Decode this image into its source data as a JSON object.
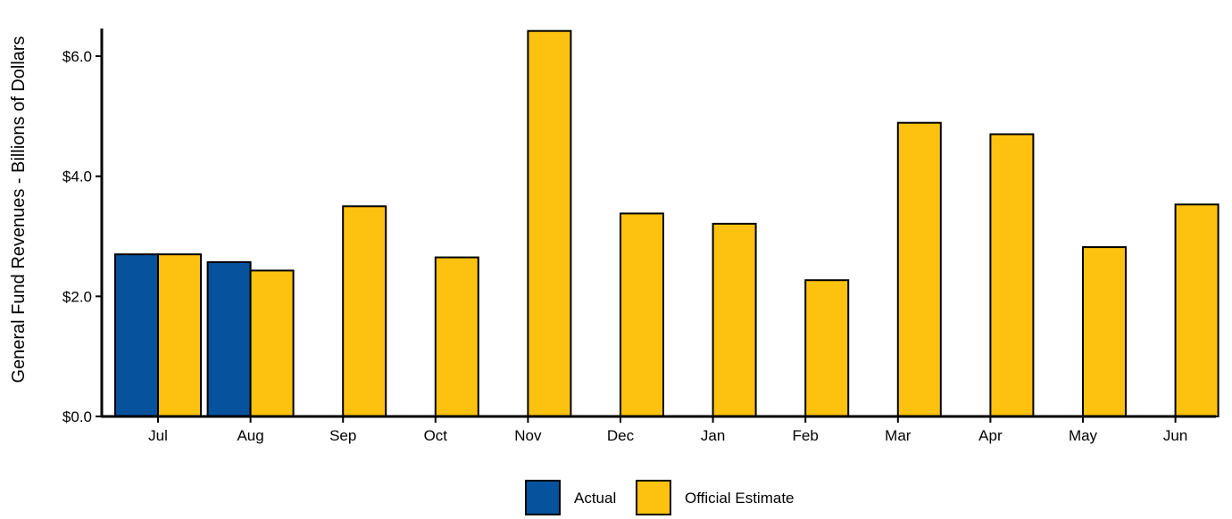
{
  "chart_data": {
    "type": "bar",
    "title": "",
    "xlabel": "",
    "ylabel": "General Fund Revenues - Billions of Dollars",
    "ylim": [
      0,
      6.5
    ],
    "yticks": [
      0,
      2,
      4,
      6
    ],
    "ytick_labels": [
      "$0.0",
      "$2.0",
      "$4.0",
      "$6.0"
    ],
    "grid": false,
    "legend_position": "bottom-center",
    "categories": [
      "Jul",
      "Aug",
      "Sep",
      "Oct",
      "Nov",
      "Dec",
      "Jan",
      "Feb",
      "Mar",
      "Apr",
      "May",
      "Jun"
    ],
    "series": [
      {
        "name": "Actual",
        "color": "#06529C",
        "values": [
          2.7,
          2.57,
          null,
          null,
          null,
          null,
          null,
          null,
          null,
          null,
          null,
          null
        ]
      },
      {
        "name": "Official Estimate",
        "color": "#FDC20F",
        "values": [
          2.7,
          2.43,
          3.5,
          2.65,
          6.42,
          3.38,
          3.21,
          2.27,
          4.89,
          4.7,
          2.82,
          3.53
        ]
      }
    ]
  }
}
